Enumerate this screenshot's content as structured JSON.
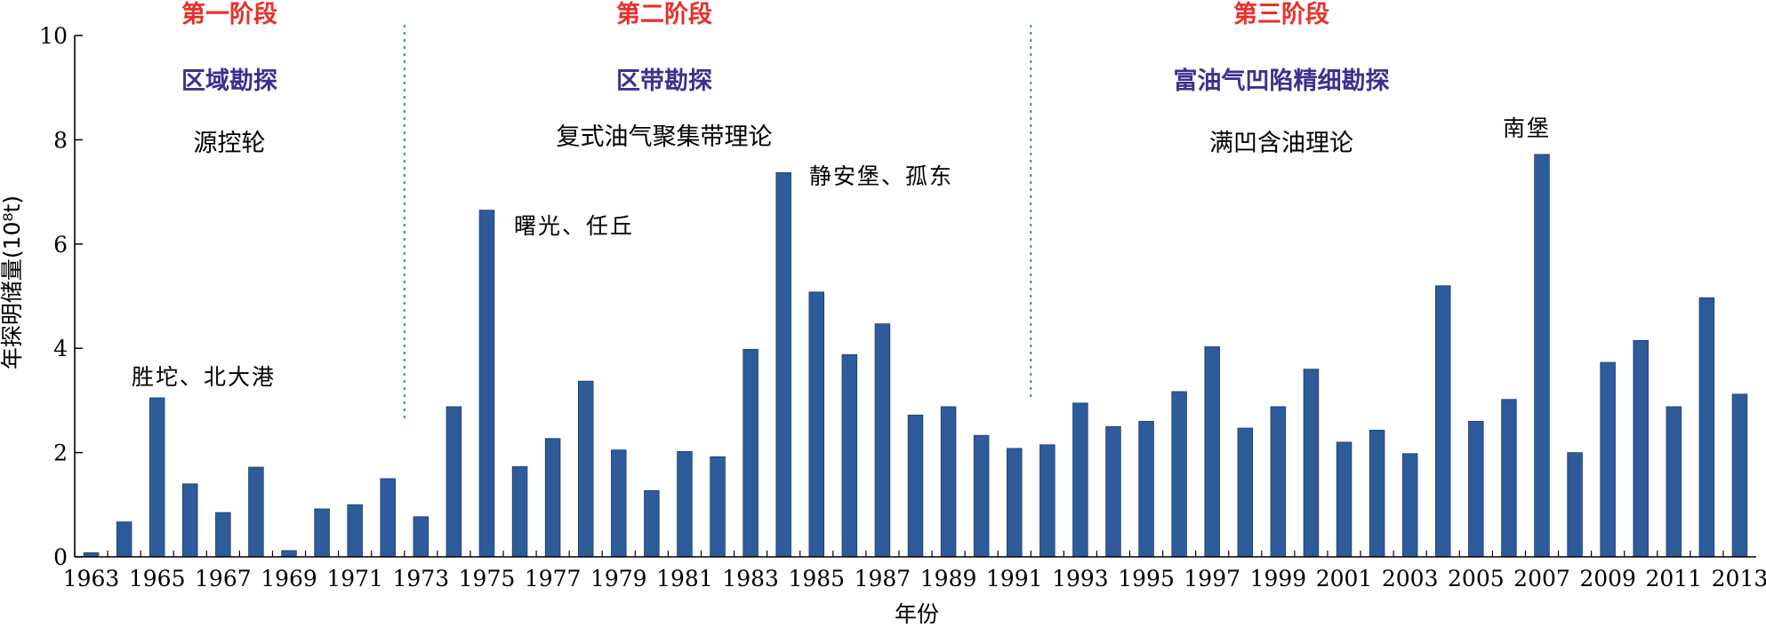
{
  "chart_data": {
    "type": "bar",
    "xlabel": "年份",
    "ylabel": "年探明储量(10⁸t)",
    "ylim": [
      0,
      10
    ],
    "yticks": [
      "0",
      "2",
      "4",
      "6",
      "8",
      "10"
    ],
    "x": [
      1963,
      1964,
      1965,
      1966,
      1967,
      1968,
      1969,
      1970,
      1971,
      1972,
      1973,
      1974,
      1975,
      1976,
      1977,
      1978,
      1979,
      1980,
      1981,
      1982,
      1983,
      1984,
      1985,
      1986,
      1987,
      1988,
      1989,
      1990,
      1991,
      1992,
      1993,
      1994,
      1995,
      1996,
      1997,
      1998,
      1999,
      2000,
      2001,
      2002,
      2003,
      2004,
      2005,
      2006,
      2007,
      2008,
      2009,
      2010,
      2011,
      2012,
      2013
    ],
    "x_tick_labels": [
      "1963",
      "1965",
      "1967",
      "1969",
      "1971",
      "1973",
      "1975",
      "1977",
      "1979",
      "1981",
      "1983",
      "1985",
      "1987",
      "1989",
      "1991",
      "1993",
      "1995",
      "1997",
      "1999",
      "2001",
      "2003",
      "2005",
      "2007",
      "2009",
      "2011",
      "2013"
    ],
    "values": [
      0.08,
      0.67,
      3.05,
      1.4,
      0.85,
      1.72,
      0.12,
      0.92,
      1.0,
      1.5,
      0.77,
      2.88,
      6.65,
      1.73,
      2.27,
      3.37,
      2.05,
      1.27,
      2.02,
      1.92,
      3.98,
      7.37,
      5.08,
      3.88,
      4.47,
      2.72,
      2.88,
      2.33,
      2.08,
      2.15,
      2.95,
      2.5,
      2.6,
      3.17,
      4.03,
      2.47,
      2.88,
      3.6,
      2.2,
      2.43,
      1.98,
      5.2,
      2.6,
      3.02,
      7.72,
      2.0,
      3.73,
      4.15,
      2.88,
      4.97,
      3.12
    ],
    "bar_color": "#2e5b9a",
    "divider_color": "#22a060",
    "dividers_after_year": [
      1972,
      1991
    ],
    "stages": [
      {
        "name": "第一阶段",
        "phase": "区域勘探",
        "theory": "源控轮"
      },
      {
        "name": "第二阶段",
        "phase": "区带勘探",
        "theory": "复式油气聚集带理论"
      },
      {
        "name": "第三阶段",
        "phase": "富油气凹陷精细勘探",
        "theory": "满凹含油理论"
      }
    ],
    "annotations": [
      {
        "text": "胜坨、北大港",
        "year": 1965
      },
      {
        "text": "曙光、任丘",
        "year": 1975
      },
      {
        "text": "静安堡、孤东",
        "year": 1984
      },
      {
        "text": "南堡",
        "year": 2007
      }
    ],
    "stage_color": "#e8302a",
    "phase_color": "#3d2f8f"
  }
}
